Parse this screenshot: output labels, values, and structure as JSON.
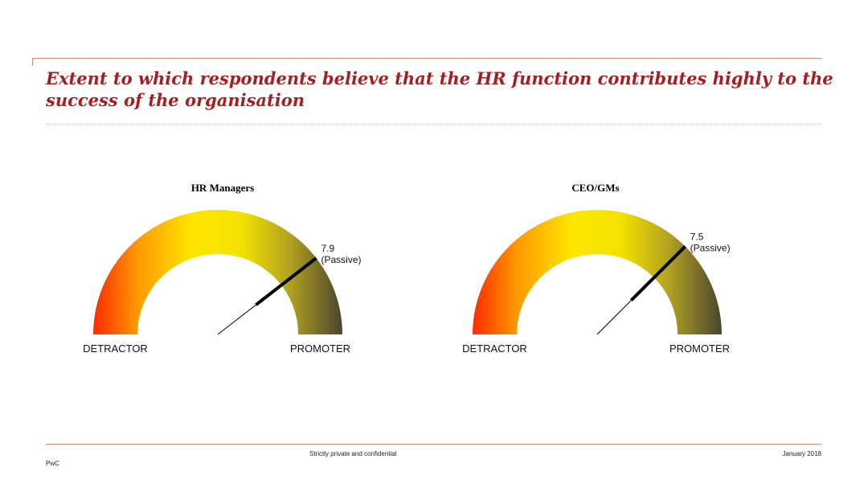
{
  "title": "Extent to which respondents believe that the HR function contributes highly to the success of the organisation",
  "chart_data": [
    {
      "type": "gauge",
      "title": "HR Managers",
      "value": 7.9,
      "value_label": "7.9",
      "category_label": "(Passive)",
      "range": [
        0,
        10
      ],
      "min_label": "DETRACTOR",
      "max_label": "PROMOTER",
      "colors": [
        "#ff2a00",
        "#ffe600",
        "#4a4530"
      ]
    },
    {
      "type": "gauge",
      "title": "CEO/GMs",
      "value": 7.5,
      "value_label": "7.5",
      "category_label": "(Passive)",
      "range": [
        0,
        10
      ],
      "min_label": "DETRACTOR",
      "max_label": "PROMOTER",
      "colors": [
        "#ff2a00",
        "#ffe600",
        "#4a4530"
      ]
    }
  ],
  "footer": {
    "confidential": "Strictly private and confidential",
    "date": "January 2018",
    "brand": "PwC"
  },
  "colors": {
    "accent": "#a32020",
    "rule": "#d9867a"
  }
}
